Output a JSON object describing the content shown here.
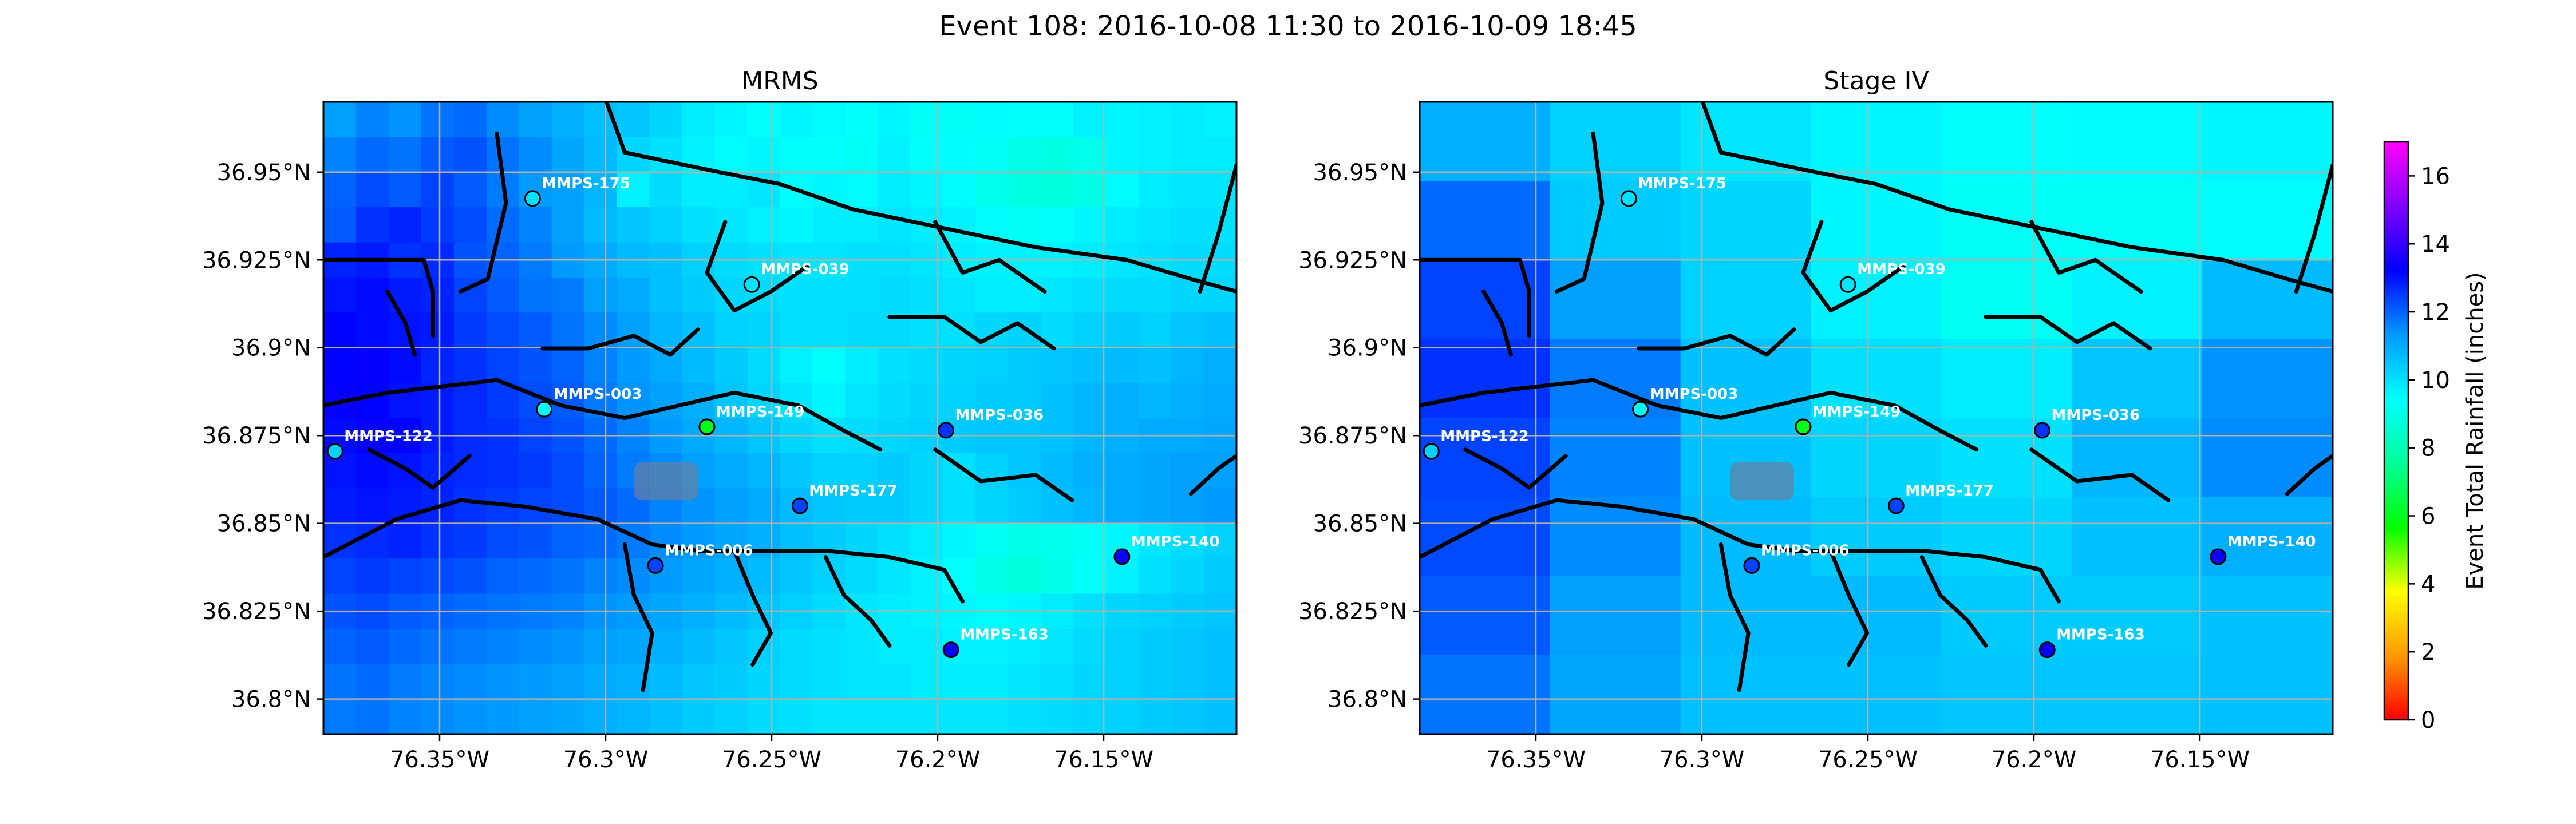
{
  "figure": {
    "title": "Event 108: 2016-10-08 11:30 to 2016-10-09 18:45"
  },
  "colorbar": {
    "label": "Event Total Rainfall (inches)",
    "ticks": [
      0,
      2,
      4,
      6,
      8,
      10,
      12,
      14,
      16
    ],
    "range": [
      0,
      17
    ],
    "colormap": "gist_rainbow_r",
    "stops": [
      "#ff0000",
      "#ff9900",
      "#ffff00",
      "#00ff00",
      "#00ff99",
      "#00ffff",
      "#0099ff",
      "#0000ff",
      "#8000ff",
      "#ff00ff"
    ]
  },
  "chart_data": [
    {
      "type": "heatmap",
      "title": "MRMS",
      "xlim": [
        -76.385,
        -76.11
      ],
      "ylim": [
        36.79,
        36.97
      ],
      "x_ticks": [
        -76.35,
        -76.3,
        -76.25,
        -76.2,
        -76.15
      ],
      "x_tick_labels": [
        "76.35°W",
        "76.3°W",
        "76.25°W",
        "76.2°W",
        "76.15°W"
      ],
      "y_ticks": [
        36.8,
        36.825,
        36.85,
        36.875,
        36.9,
        36.925,
        36.95
      ],
      "y_tick_labels": [
        "36.8°N",
        "36.825°N",
        "36.85°N",
        "36.875°N",
        "36.9°N",
        "36.925°N",
        "36.95°N"
      ],
      "grid": true,
      "grid_cell_deg": 0.01,
      "grid_rows_north_to_south": [
        [
          11.2,
          11.6,
          11.4,
          11.8,
          11.9,
          11.5,
          11.2,
          10.9,
          10.6,
          10.5,
          10.2,
          9.8,
          9.6,
          9.4,
          9.6,
          9.5,
          9.4,
          9.6,
          9.3,
          9.3,
          9.5,
          9.4,
          9.4,
          9.7,
          9.6,
          9.7,
          9.8,
          9.7
        ],
        [
          11.6,
          11.9,
          11.8,
          12.1,
          12.2,
          11.8,
          11.5,
          11.1,
          10.7,
          10.2,
          10.0,
          9.7,
          9.5,
          9.6,
          9.4,
          9.4,
          9.3,
          9.7,
          9.4,
          9.5,
          9.3,
          9.0,
          8.9,
          9.1,
          9.6,
          9.7,
          9.8,
          9.8
        ],
        [
          12.0,
          12.3,
          12.1,
          12.4,
          12.1,
          11.7,
          11.3,
          11.2,
          10.8,
          9.7,
          10.1,
          9.8,
          9.8,
          9.9,
          9.5,
          9.6,
          9.5,
          9.8,
          9.6,
          9.5,
          9.1,
          8.9,
          8.8,
          9.0,
          9.5,
          9.8,
          9.9,
          9.9
        ],
        [
          12.1,
          12.6,
          12.8,
          12.5,
          12.3,
          11.9,
          11.6,
          11.2,
          10.7,
          10.5,
          10.3,
          10.0,
          9.9,
          9.7,
          9.6,
          9.8,
          9.8,
          9.9,
          9.8,
          9.7,
          9.5,
          9.3,
          9.4,
          9.6,
          9.8,
          9.9,
          10.0,
          10.0
        ],
        [
          12.8,
          12.9,
          12.6,
          12.7,
          12.2,
          12.0,
          11.7,
          11.3,
          11.0,
          10.7,
          10.6,
          10.3,
          10.1,
          10.0,
          9.9,
          9.9,
          10.0,
          10.0,
          9.9,
          9.8,
          9.7,
          9.7,
          9.7,
          9.8,
          9.9,
          10.0,
          10.1,
          10.1
        ],
        [
          13.0,
          13.1,
          12.9,
          12.8,
          12.4,
          12.1,
          11.8,
          11.7,
          11.2,
          11.0,
          10.6,
          10.4,
          10.2,
          10.1,
          10.0,
          10.0,
          10.0,
          10.1,
          10.0,
          9.9,
          9.8,
          9.8,
          9.9,
          10.0,
          10.1,
          10.1,
          10.2,
          10.2
        ],
        [
          13.2,
          13.1,
          13.0,
          12.9,
          12.5,
          12.3,
          12.1,
          11.8,
          11.5,
          11.2,
          10.8,
          10.6,
          10.3,
          10.2,
          10.0,
          10.0,
          10.1,
          10.1,
          10.0,
          10.0,
          10.2,
          10.3,
          10.1,
          10.3,
          10.4,
          10.3,
          10.5,
          10.6
        ],
        [
          13.2,
          13.3,
          13.1,
          12.8,
          12.6,
          12.4,
          12.2,
          12.0,
          11.6,
          11.3,
          11.0,
          10.7,
          10.4,
          10.1,
          9.7,
          9.4,
          9.8,
          10.0,
          10.1,
          10.2,
          10.3,
          10.4,
          10.5,
          10.6,
          10.7,
          10.6,
          10.8,
          10.9
        ],
        [
          13.3,
          13.2,
          13.0,
          12.9,
          12.7,
          12.5,
          12.3,
          12.1,
          11.7,
          11.4,
          11.2,
          10.9,
          10.5,
          10.2,
          9.9,
          9.6,
          9.9,
          10.1,
          10.2,
          10.3,
          10.4,
          10.4,
          10.6,
          10.8,
          10.9,
          10.8,
          10.9,
          11.0
        ],
        [
          13.1,
          13.3,
          13.2,
          12.9,
          12.7,
          12.6,
          12.4,
          12.2,
          11.9,
          11.6,
          11.3,
          11.0,
          10.8,
          10.5,
          10.2,
          10.0,
          10.1,
          10.2,
          10.3,
          10.4,
          10.5,
          10.5,
          10.6,
          10.8,
          10.9,
          11.0,
          11.0,
          11.1
        ],
        [
          13.0,
          13.1,
          13.0,
          12.8,
          12.7,
          12.6,
          12.5,
          12.3,
          12.0,
          11.7,
          11.5,
          11.2,
          11.0,
          10.8,
          10.5,
          10.3,
          10.3,
          10.4,
          10.2,
          10.0,
          10.3,
          10.5,
          10.7,
          10.9,
          11.0,
          11.1,
          11.2,
          11.2
        ],
        [
          12.9,
          13.0,
          12.9,
          12.8,
          12.6,
          12.5,
          12.4,
          12.3,
          12.1,
          11.9,
          11.6,
          11.4,
          11.2,
          11.0,
          10.7,
          10.5,
          10.4,
          10.4,
          10.2,
          10.0,
          10.2,
          10.4,
          10.6,
          10.8,
          11.0,
          11.1,
          11.2,
          11.3
        ],
        [
          12.6,
          12.7,
          12.8,
          12.6,
          12.5,
          12.3,
          12.2,
          12.0,
          11.9,
          11.7,
          11.5,
          11.3,
          11.1,
          10.9,
          10.6,
          10.4,
          10.2,
          10.0,
          9.8,
          9.6,
          9.2,
          9.0,
          9.1,
          9.3,
          9.6,
          9.9,
          10.1,
          10.3
        ],
        [
          12.4,
          12.5,
          12.4,
          12.3,
          12.2,
          12.0,
          11.9,
          11.8,
          11.6,
          11.5,
          11.3,
          11.1,
          10.9,
          10.7,
          10.5,
          10.3,
          10.1,
          9.9,
          9.7,
          9.4,
          9.0,
          8.8,
          9.0,
          9.4,
          9.7,
          10.0,
          10.2,
          10.4
        ],
        [
          12.2,
          12.3,
          12.1,
          12.0,
          11.9,
          11.8,
          11.7,
          11.6,
          11.4,
          11.3,
          11.1,
          10.9,
          10.7,
          10.5,
          10.3,
          10.1,
          9.9,
          9.8,
          9.7,
          9.6,
          9.5,
          9.6,
          9.8,
          10.0,
          10.2,
          10.3,
          10.4,
          10.5
        ],
        [
          12.0,
          12.1,
          11.9,
          11.8,
          11.7,
          11.6,
          11.5,
          11.4,
          11.2,
          11.1,
          10.9,
          10.7,
          10.5,
          10.3,
          10.1,
          10.0,
          9.9,
          9.8,
          9.8,
          9.7,
          9.7,
          9.8,
          9.9,
          10.1,
          10.3,
          10.4,
          10.5,
          10.6
        ],
        [
          11.8,
          11.9,
          11.7,
          11.6,
          11.5,
          11.4,
          11.3,
          11.2,
          11.0,
          10.9,
          10.7,
          10.5,
          10.4,
          10.2,
          10.1,
          10.0,
          9.9,
          9.9,
          9.8,
          9.8,
          9.8,
          9.9,
          10.0,
          10.2,
          10.3,
          10.4,
          10.5,
          10.6
        ],
        [
          11.7,
          11.8,
          11.6,
          11.5,
          11.4,
          11.3,
          11.2,
          11.1,
          10.9,
          10.8,
          10.6,
          10.4,
          10.3,
          10.1,
          10.0,
          9.9,
          9.9,
          9.9,
          9.9,
          9.9,
          9.9,
          10.0,
          10.1,
          10.2,
          10.3,
          10.4,
          10.5,
          10.6
        ]
      ],
      "gauges": [
        {
          "id": "MMPS-175",
          "lon": -76.322,
          "lat": 36.9425,
          "value": 10.0
        },
        {
          "id": "MMPS-039",
          "lon": -76.256,
          "lat": 36.918,
          "value": 9.9
        },
        {
          "id": "MMPS-003",
          "lon": -76.3185,
          "lat": 36.8825,
          "value": 9.2
        },
        {
          "id": "MMPS-149",
          "lon": -76.2695,
          "lat": 36.8775,
          "value": 6.0
        },
        {
          "id": "MMPS-122",
          "lon": -76.3815,
          "lat": 36.8705,
          "value": 10.3
        },
        {
          "id": "MMPS-036",
          "lon": -76.1975,
          "lat": 36.8765,
          "value": 12.6
        },
        {
          "id": "MMPS-177",
          "lon": -76.2415,
          "lat": 36.855,
          "value": 12.4
        },
        {
          "id": "MMPS-006",
          "lon": -76.285,
          "lat": 36.838,
          "value": 12.4
        },
        {
          "id": "MMPS-140",
          "lon": -76.1445,
          "lat": 36.8405,
          "value": 13.4
        },
        {
          "id": "MMPS-163",
          "lon": -76.196,
          "lat": 36.814,
          "value": 13.3
        }
      ]
    },
    {
      "type": "heatmap",
      "title": "Stage IV",
      "xlim": [
        -76.385,
        -76.11
      ],
      "ylim": [
        36.79,
        36.97
      ],
      "x_ticks": [
        -76.35,
        -76.3,
        -76.25,
        -76.2,
        -76.15
      ],
      "x_tick_labels": [
        "76.35°W",
        "76.3°W",
        "76.25°W",
        "76.2°W",
        "76.15°W"
      ],
      "y_ticks": [
        36.8,
        36.825,
        36.85,
        36.875,
        36.9,
        36.925,
        36.95
      ],
      "y_tick_labels": [
        "36.8°N",
        "36.825°N",
        "36.85°N",
        "36.875°N",
        "36.9°N",
        "36.925°N",
        "36.95°N"
      ],
      "grid": true,
      "grid_cell_deg": 0.0427,
      "grid_cell_lat_deg": 0.0239,
      "grid_rows_north_to_south": [
        [
          10.9,
          10.3,
          9.9,
          9.6,
          9.4,
          9.5,
          9.6
        ],
        [
          11.9,
          10.4,
          10.2,
          9.6,
          9.3,
          9.3,
          9.5
        ],
        [
          12.4,
          11.2,
          10.3,
          9.7,
          9.2,
          9.7,
          10.7
        ],
        [
          12.6,
          11.7,
          10.6,
          10.0,
          9.8,
          10.5,
          11.4
        ],
        [
          12.4,
          11.6,
          10.6,
          10.2,
          10.0,
          10.8,
          11.5
        ],
        [
          12.3,
          11.5,
          10.7,
          10.4,
          10.2,
          10.6,
          10.9
        ],
        [
          12.1,
          11.2,
          10.7,
          10.7,
          10.4,
          10.4,
          10.6
        ],
        [
          11.8,
          11.1,
          10.6,
          10.6,
          10.5,
          10.5,
          10.6
        ]
      ],
      "gauges": [
        {
          "id": "MMPS-175",
          "lon": -76.322,
          "lat": 36.9425,
          "value": 10.0
        },
        {
          "id": "MMPS-039",
          "lon": -76.256,
          "lat": 36.918,
          "value": 9.9
        },
        {
          "id": "MMPS-003",
          "lon": -76.3185,
          "lat": 36.8825,
          "value": 9.2
        },
        {
          "id": "MMPS-149",
          "lon": -76.2695,
          "lat": 36.8775,
          "value": 6.0
        },
        {
          "id": "MMPS-122",
          "lon": -76.3815,
          "lat": 36.8705,
          "value": 10.3
        },
        {
          "id": "MMPS-036",
          "lon": -76.1975,
          "lat": 36.8765,
          "value": 12.6
        },
        {
          "id": "MMPS-177",
          "lon": -76.2415,
          "lat": 36.855,
          "value": 12.4
        },
        {
          "id": "MMPS-006",
          "lon": -76.285,
          "lat": 36.838,
          "value": 12.4
        },
        {
          "id": "MMPS-140",
          "lon": -76.1445,
          "lat": 36.8405,
          "value": 13.4
        },
        {
          "id": "MMPS-163",
          "lon": -76.196,
          "lat": 36.814,
          "value": 13.3
        }
      ]
    }
  ]
}
